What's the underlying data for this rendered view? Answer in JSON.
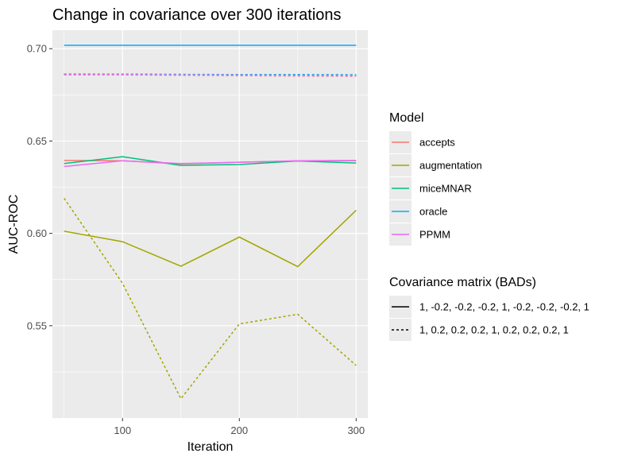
{
  "chart_data": {
    "type": "line",
    "title": "Change in covariance over 300 iterations",
    "xlabel": "Iteration",
    "ylabel": "AUC-ROC",
    "x": [
      50,
      100,
      150,
      200,
      250,
      300
    ],
    "xlim": [
      40,
      310
    ],
    "ylim": [
      0.5,
      0.71
    ],
    "x_ticks": [
      100,
      200,
      300
    ],
    "x_tick_labels": [
      "100",
      "200",
      "300"
    ],
    "y_ticks": [
      0.55,
      0.6,
      0.65,
      0.7
    ],
    "y_tick_labels": [
      "0.55",
      "0.60",
      "0.65",
      "0.70"
    ],
    "grid": true,
    "legend_placement": "right",
    "model_legend": {
      "title": "Model",
      "items": [
        {
          "label": "accepts",
          "color": "#F8766D"
        },
        {
          "label": "augmentation",
          "color": "#A3A500"
        },
        {
          "label": "miceMNAR",
          "color": "#00BF7D"
        },
        {
          "label": "oracle",
          "color": "#00B0F6"
        },
        {
          "label": "PPMM",
          "color": "#E76BF3"
        }
      ]
    },
    "linetype_legend": {
      "title": "Covariance matrix (BADs)",
      "items": [
        {
          "label": "1, -0.2, -0.2, -0.2, 1, -0.2, -0.2, -0.2, 1",
          "dash": "solid"
        },
        {
          "label": "1, 0.2, 0.2, 0.2, 1, 0.2, 0.2, 0.2, 1",
          "dash": "dashed"
        }
      ]
    },
    "series": [
      {
        "model": "accepts",
        "covariance": "1, -0.2, -0.2, -0.2, 1, -0.2, -0.2, -0.2, 1",
        "color": "#F8766D",
        "dash": "solid",
        "values": [
          0.6395,
          0.6393,
          0.6376,
          0.6385,
          0.6392,
          0.6393
        ]
      },
      {
        "model": "augmentation",
        "covariance": "1, -0.2, -0.2, -0.2, 1, -0.2, -0.2, -0.2, 1",
        "color": "#A3A500",
        "dash": "solid",
        "values": [
          0.6012,
          0.5955,
          0.5822,
          0.598,
          0.582,
          0.6125
        ]
      },
      {
        "model": "miceMNAR",
        "covariance": "1, -0.2, -0.2, -0.2, 1, -0.2, -0.2, -0.2, 1",
        "color": "#00BF7D",
        "dash": "solid",
        "values": [
          0.6378,
          0.6415,
          0.6368,
          0.6373,
          0.6392,
          0.6381
        ]
      },
      {
        "model": "oracle",
        "covariance": "1, -0.2, -0.2, -0.2, 1, -0.2, -0.2, -0.2, 1",
        "color": "#00B0F6",
        "dash": "solid",
        "values": [
          0.7018,
          0.7018,
          0.7018,
          0.7018,
          0.7018,
          0.7018
        ]
      },
      {
        "model": "PPMM",
        "covariance": "1, -0.2, -0.2, -0.2, 1, -0.2, -0.2, -0.2, 1",
        "color": "#E76BF3",
        "dash": "solid",
        "values": [
          0.6362,
          0.6393,
          0.6378,
          0.6385,
          0.6393,
          0.6395
        ]
      },
      {
        "model": "accepts",
        "covariance": "1, 0.2, 0.2, 0.2, 1, 0.2, 0.2, 0.2, 1",
        "color": "#F8766D",
        "dash": "dashed",
        "values": [
          0.6858,
          0.6858,
          0.6856,
          0.6854,
          0.6852,
          0.6851
        ]
      },
      {
        "model": "augmentation",
        "covariance": "1, 0.2, 0.2, 0.2, 1, 0.2, 0.2, 0.2, 1",
        "color": "#A3A500",
        "dash": "dashed",
        "values": [
          0.619,
          0.573,
          0.5105,
          0.551,
          0.5562,
          0.5285
        ]
      },
      {
        "model": "miceMNAR",
        "covariance": "1, 0.2, 0.2, 0.2, 1, 0.2, 0.2, 0.2, 1",
        "color": "#00BF7D",
        "dash": "dashed",
        "values": [
          0.6862,
          0.6862,
          0.686,
          0.6859,
          0.6858,
          0.6858
        ]
      },
      {
        "model": "oracle",
        "covariance": "1, 0.2, 0.2, 0.2, 1, 0.2, 0.2, 0.2, 1",
        "color": "#00B0F6",
        "dash": "dashed",
        "values": [
          0.6863,
          0.6862,
          0.6861,
          0.686,
          0.686,
          0.6859
        ]
      },
      {
        "model": "PPMM",
        "covariance": "1, 0.2, 0.2, 0.2, 1, 0.2, 0.2, 0.2, 1",
        "color": "#E76BF3",
        "dash": "dashed",
        "values": [
          0.6861,
          0.686,
          0.6858,
          0.6857,
          0.6855,
          0.6854
        ]
      }
    ]
  }
}
